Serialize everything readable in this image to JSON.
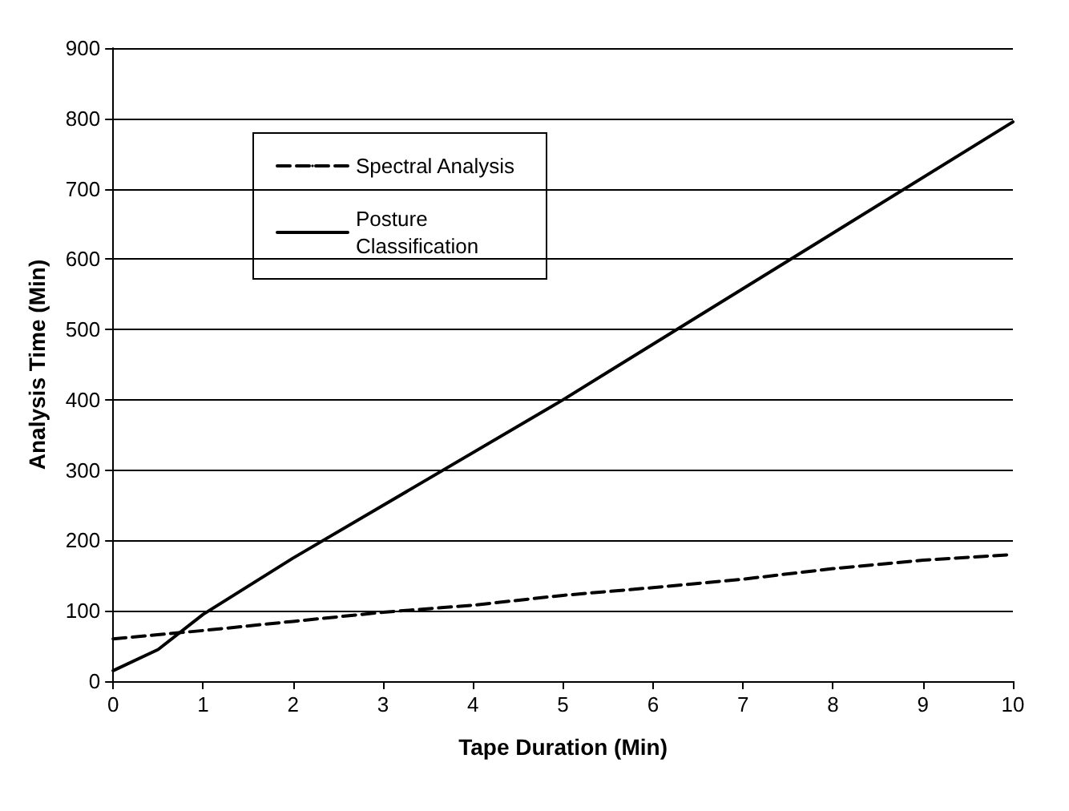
{
  "chart_data": {
    "type": "line",
    "xlabel": "Tape Duration (Min)",
    "ylabel": "Analysis Time (Min)",
    "xlim": [
      0,
      10
    ],
    "xticks": [
      0,
      1,
      2,
      3,
      4,
      5,
      6,
      7,
      8,
      9,
      10
    ],
    "ylim": [
      0,
      900
    ],
    "yticks": [
      0,
      100,
      200,
      300,
      400,
      500,
      600,
      700,
      800,
      900
    ],
    "grid": "y",
    "legend": "top left",
    "marker": "none",
    "series": [
      {
        "name": "Spectral Analysis",
        "color": "#000000",
        "line_style": "dashed",
        "x": [
          0,
          1,
          2,
          3,
          4,
          5,
          6,
          7,
          8,
          9,
          10
        ],
        "values": [
          60,
          72,
          85,
          98,
          108,
          122,
          133,
          145,
          160,
          172,
          180
        ]
      },
      {
        "name": "Posture Classification",
        "color": "#000000",
        "line_style": "solid",
        "x": [
          0,
          0.5,
          1,
          2,
          5,
          10
        ],
        "values": [
          15,
          45,
          95,
          175,
          400,
          795
        ]
      }
    ]
  }
}
